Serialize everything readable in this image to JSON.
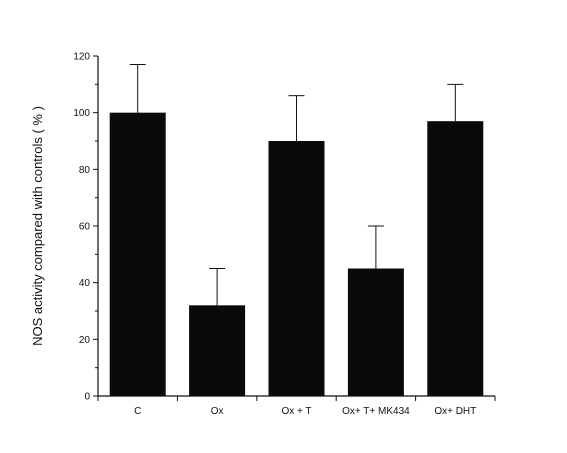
{
  "chart_data": {
    "type": "bar",
    "categories": [
      "C",
      "Ox",
      "Ox + T",
      "Ox+ T+ MK434",
      "Ox+ DHT"
    ],
    "values": [
      100,
      32,
      90,
      45,
      97
    ],
    "errors": [
      17,
      13,
      16,
      15,
      13
    ],
    "title": "",
    "xlabel": "",
    "ylabel": "NOS activity compared with controls ( % )",
    "ylim": [
      0,
      120
    ],
    "yticks": [
      0,
      20,
      40,
      60,
      80,
      100,
      120
    ],
    "grid": false,
    "bar_color": "#0a0a0a"
  }
}
